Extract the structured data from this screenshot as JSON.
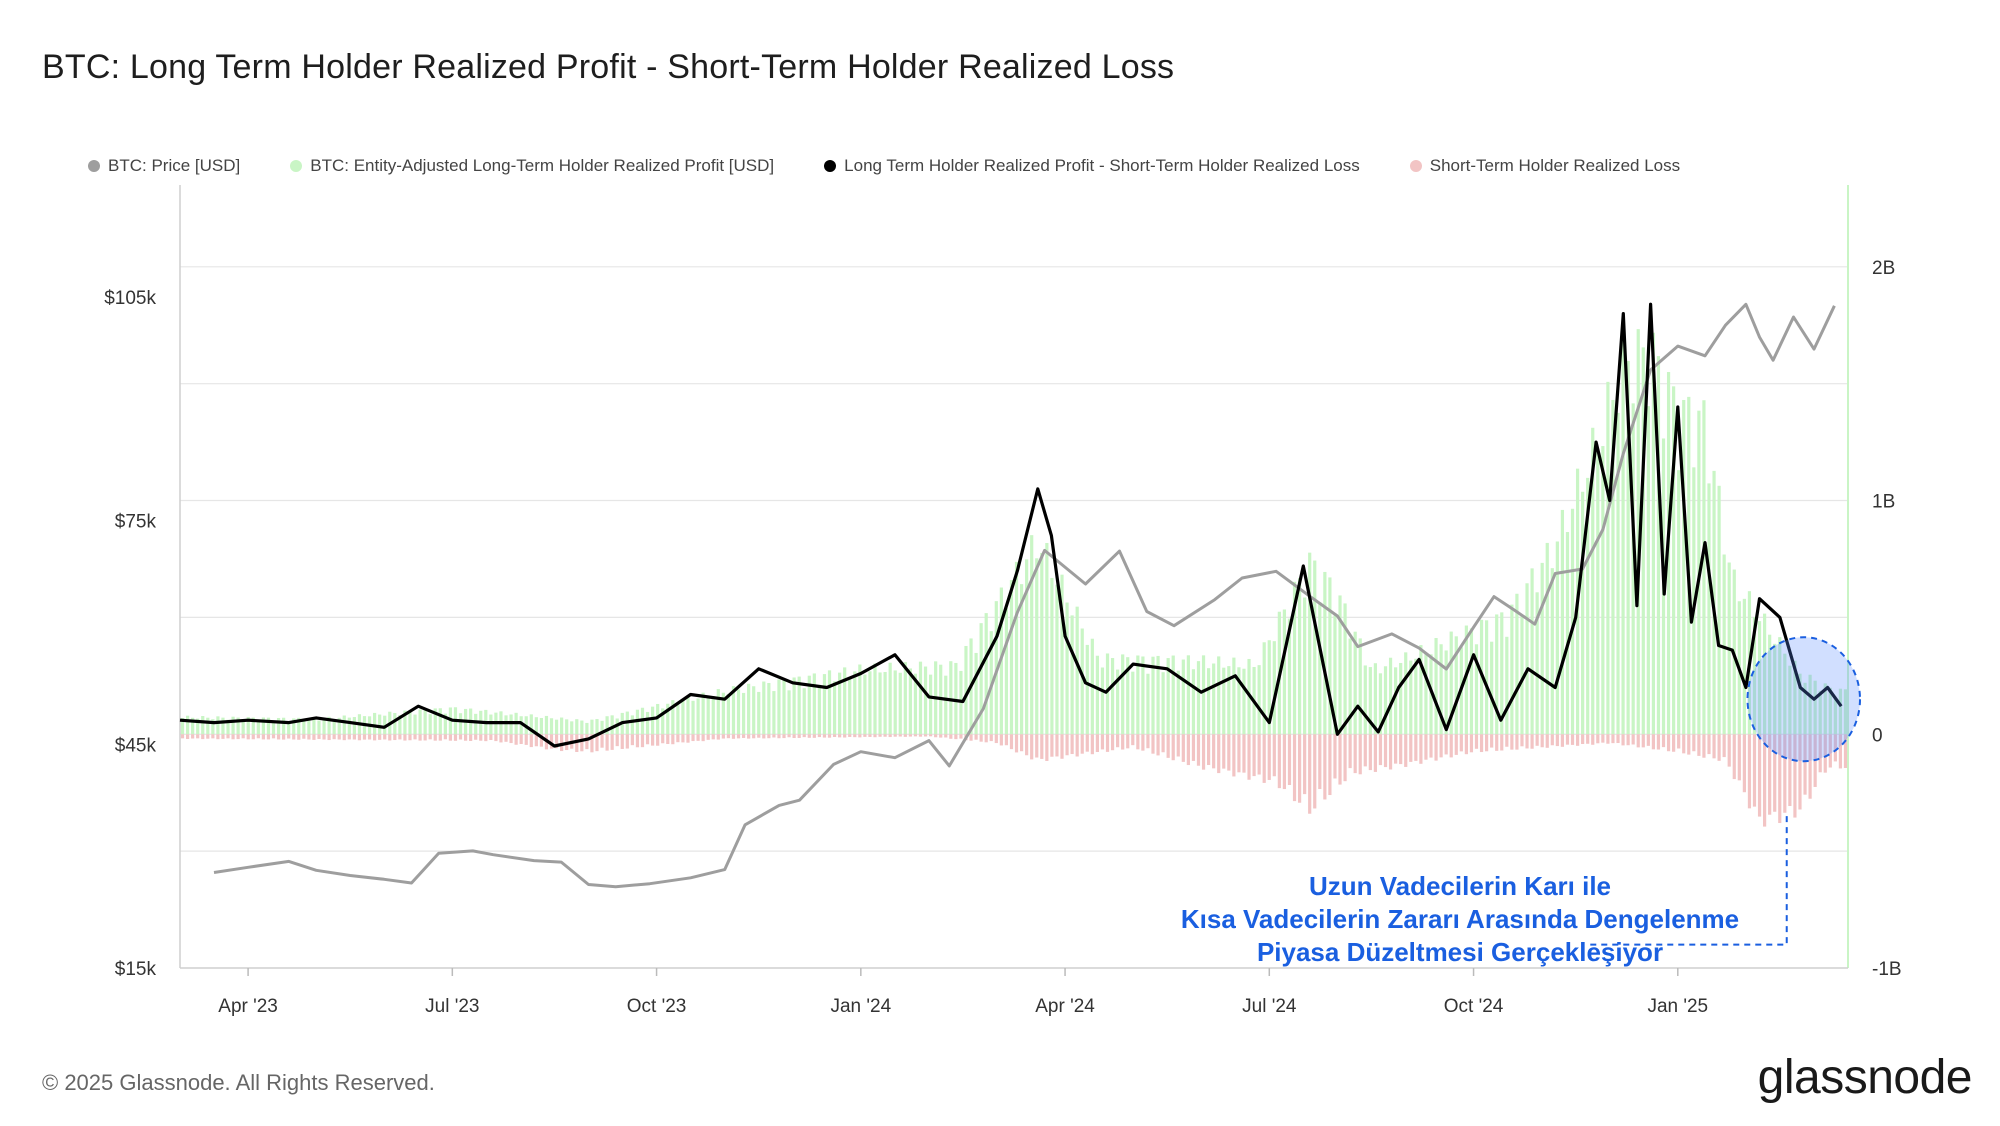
{
  "chart_data": {
    "type": "line",
    "title": "BTC: Long Term Holder Realized Profit - Short-Term Holder Realized Loss",
    "x_ticks": [
      "Apr '23",
      "Jul '23",
      "Oct '23",
      "Jan '24",
      "Apr '24",
      "Jul '24",
      "Oct '24",
      "Jan '25"
    ],
    "x_range": [
      0,
      24.5
    ],
    "x_unit": "months since 2023-03-01",
    "y_left": {
      "label": "BTC: Price [USD]",
      "ticks": [
        "$105k",
        "$75k",
        "$45k",
        "$15k"
      ],
      "tick_values": [
        105000,
        75000,
        45000,
        15000
      ],
      "range": [
        15000,
        120000
      ]
    },
    "y_right": {
      "ticks": [
        "2B",
        "1B",
        "0",
        "-1B"
      ],
      "tick_values": [
        2,
        1,
        0,
        -1
      ],
      "range": [
        -1,
        2.35
      ],
      "unit": "billion USD"
    },
    "legend": [
      {
        "name": "BTC: Price [USD]",
        "color": "#9e9e9e"
      },
      {
        "name": "BTC: Entity-Adjusted Long-Term Holder Realized Profit [USD]",
        "color": "#c9f5c5"
      },
      {
        "name": "Long Term Holder Realized Profit - Short-Term Holder Realized Loss",
        "color": "#000000"
      },
      {
        "name": "Short-Term Holder Realized Loss",
        "color": "#f2c4c4"
      }
    ],
    "series": [
      {
        "name": "BTC: Price [USD]",
        "axis": "left",
        "x": [
          0.5,
          1,
          1.6,
          2,
          2.5,
          3,
          3.4,
          3.8,
          4.3,
          4.6,
          5.2,
          5.6,
          6,
          6.4,
          6.9,
          7.5,
          8,
          8.3,
          8.8,
          9.1,
          9.6,
          10,
          10.5,
          11,
          11.3,
          11.8,
          12.3,
          12.7,
          13.3,
          13.8,
          14.2,
          14.6,
          15.2,
          15.6,
          16.1,
          16.6,
          17,
          17.3,
          17.8,
          18.2,
          18.6,
          19,
          19.3,
          19.6,
          19.9,
          20.2,
          20.6,
          20.9,
          21.2,
          21.6,
          22,
          22.4,
          22.7,
          23,
          23.2,
          23.4,
          23.7,
          24,
          24.3
        ],
        "values": [
          27800,
          28500,
          29300,
          28100,
          27400,
          26900,
          26400,
          30400,
          30700,
          30200,
          29400,
          29200,
          26200,
          25900,
          26300,
          27100,
          28200,
          34200,
          36800,
          37500,
          42300,
          44000,
          43200,
          45500,
          42100,
          49800,
          62700,
          71000,
          66500,
          70900,
          62800,
          60900,
          64400,
          67300,
          68200,
          64800,
          62200,
          58100,
          59800,
          57900,
          55100,
          60700,
          64800,
          63000,
          61100,
          67900,
          68500,
          73800,
          84000,
          95200,
          98400,
          97100,
          101200,
          104000,
          99600,
          96500,
          102300,
          98000,
          103800
        ]
      },
      {
        "name": "Long Term Holder Realized Profit - Short-Term Holder Realized Loss",
        "axis": "right",
        "x": [
          0,
          0.5,
          1,
          1.6,
          2,
          2.5,
          3,
          3.5,
          4,
          4.5,
          5,
          5.5,
          6,
          6.5,
          7,
          7.5,
          8,
          8.5,
          9,
          9.5,
          10,
          10.5,
          11,
          11.5,
          12,
          12.3,
          12.6,
          12.8,
          13,
          13.3,
          13.6,
          14,
          14.5,
          15,
          15.5,
          16,
          16.5,
          17,
          17.3,
          17.6,
          17.9,
          18.2,
          18.6,
          19,
          19.4,
          19.8,
          20.2,
          20.5,
          20.8,
          21.0,
          21.2,
          21.4,
          21.6,
          21.8,
          22.0,
          22.2,
          22.4,
          22.6,
          22.8,
          23.0,
          23.2,
          23.5,
          23.8,
          24.0,
          24.2,
          24.4
        ],
        "values": [
          0.06,
          0.05,
          0.06,
          0.05,
          0.07,
          0.05,
          0.03,
          0.12,
          0.06,
          0.05,
          0.05,
          -0.05,
          -0.02,
          0.05,
          0.07,
          0.17,
          0.15,
          0.28,
          0.22,
          0.2,
          0.26,
          0.34,
          0.16,
          0.14,
          0.42,
          0.7,
          1.05,
          0.85,
          0.42,
          0.22,
          0.18,
          0.3,
          0.28,
          0.18,
          0.25,
          0.05,
          0.72,
          0.0,
          0.12,
          0.01,
          0.2,
          0.32,
          0.02,
          0.34,
          0.06,
          0.28,
          0.2,
          0.5,
          1.25,
          1.0,
          1.8,
          0.55,
          1.84,
          0.6,
          1.4,
          0.48,
          0.82,
          0.38,
          0.36,
          0.2,
          0.58,
          0.5,
          0.2,
          0.15,
          0.2,
          0.12
        ]
      },
      {
        "name": "BTC: Entity-Adjusted Long-Term Holder Realized Profit [USD]",
        "axis": "right",
        "encoding": "bars",
        "x": [
          0,
          2,
          4,
          6,
          8,
          10,
          11.4,
          12.3,
          12.6,
          13.5,
          15,
          15.8,
          16.6,
          17,
          17.5,
          18,
          18.5,
          19.5,
          20.2,
          20.8,
          21.2,
          21.6,
          22,
          22.4,
          22.8,
          23.2,
          23.8,
          24.3
        ],
        "values": [
          0.08,
          0.07,
          0.12,
          0.06,
          0.2,
          0.3,
          0.32,
          0.75,
          0.9,
          0.35,
          0.34,
          0.32,
          0.8,
          0.65,
          0.3,
          0.35,
          0.42,
          0.55,
          0.88,
          1.35,
          1.72,
          1.78,
          1.5,
          1.45,
          0.72,
          0.55,
          0.28,
          0.2
        ]
      },
      {
        "name": "Short-Term Holder Realized Loss",
        "axis": "right",
        "encoding": "negative bars",
        "x": [
          0,
          4.6,
          5.5,
          6,
          8,
          11,
          12,
          12.6,
          14,
          15,
          16.1,
          16.6,
          17.2,
          18,
          19,
          21,
          22,
          22.7,
          23.2,
          23.5,
          23.8,
          24.2
        ],
        "values": [
          -0.02,
          -0.03,
          -0.07,
          -0.08,
          -0.02,
          -0.01,
          -0.04,
          -0.12,
          -0.06,
          -0.15,
          -0.22,
          -0.35,
          -0.18,
          -0.14,
          -0.08,
          -0.04,
          -0.08,
          -0.12,
          -0.4,
          -0.38,
          -0.35,
          -0.15
        ]
      }
    ],
    "annotation": {
      "lines": [
        "Uzun Vadecilerin Karı ile",
        "Kısa Vadecilerin Zararı Arasında Dengelenme",
        "Piyasa Düzeltmesi Gerçekleşiyor"
      ],
      "color": "#1a5fe0",
      "highlight_x_range": [
        23.2,
        24.5
      ]
    }
  },
  "footer": {
    "copyright": "© 2025 Glassnode. All Rights Reserved.",
    "brand": "glassnode"
  }
}
